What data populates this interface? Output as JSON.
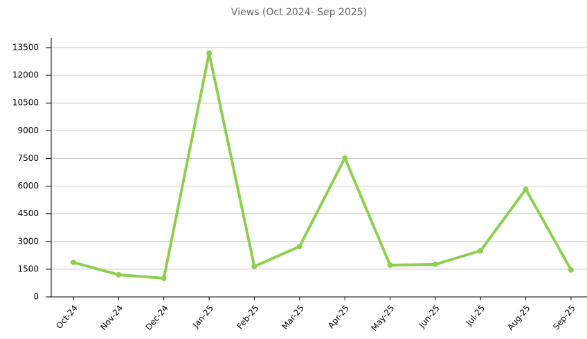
{
  "chart_data": {
    "type": "line",
    "title": "Views (Oct 2024- Sep 2025)",
    "categories": [
      "Oct-24",
      "Nov-24",
      "Dec-24",
      "Jan-25",
      "Feb-25",
      "Mar-25",
      "Apr-25",
      "May-25",
      "Jun-25",
      "Jul-25",
      "Aug-25",
      "Sep-25"
    ],
    "series": [
      {
        "name": "Views",
        "color": "#8dd04f",
        "values": [
          1870,
          1200,
          1010,
          13200,
          1650,
          2730,
          7520,
          1720,
          1760,
          2500,
          5830,
          1460
        ]
      }
    ],
    "ylim": [
      0,
      13500
    ],
    "yticks": [
      0,
      1500,
      3000,
      4500,
      6000,
      7500,
      9000,
      10500,
      12000,
      13500
    ],
    "grid": true
  }
}
